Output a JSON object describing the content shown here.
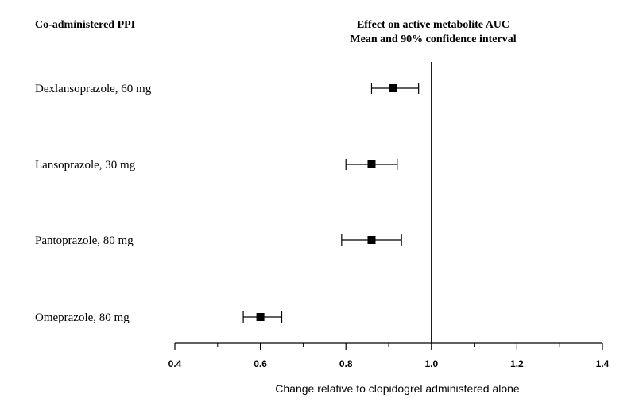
{
  "chart_data": {
    "type": "forest",
    "header_left": "Co-administered PPI",
    "title_line1": "Effect on active metabolite AUC",
    "title_line2": "Mean and 90% confidence interval",
    "xlabel": "Change relative to clopidogrel administered alone",
    "xlim": [
      0.4,
      1.4
    ],
    "reference_line": 1.0,
    "ticks": [
      "0.4",
      "0.6",
      "0.8",
      "1.0",
      "1.2",
      "1.4"
    ],
    "rows": [
      {
        "label": "Dexlansoprazole, 60 mg",
        "mean": 0.91,
        "lower": 0.86,
        "upper": 0.97
      },
      {
        "label": "Lansoprazole, 30 mg",
        "mean": 0.86,
        "lower": 0.8,
        "upper": 0.92
      },
      {
        "label": "Pantoprazole, 80 mg",
        "mean": 0.86,
        "lower": 0.79,
        "upper": 0.93
      },
      {
        "label": "Omeprazole, 80 mg",
        "mean": 0.6,
        "lower": 0.56,
        "upper": 0.65
      }
    ]
  }
}
